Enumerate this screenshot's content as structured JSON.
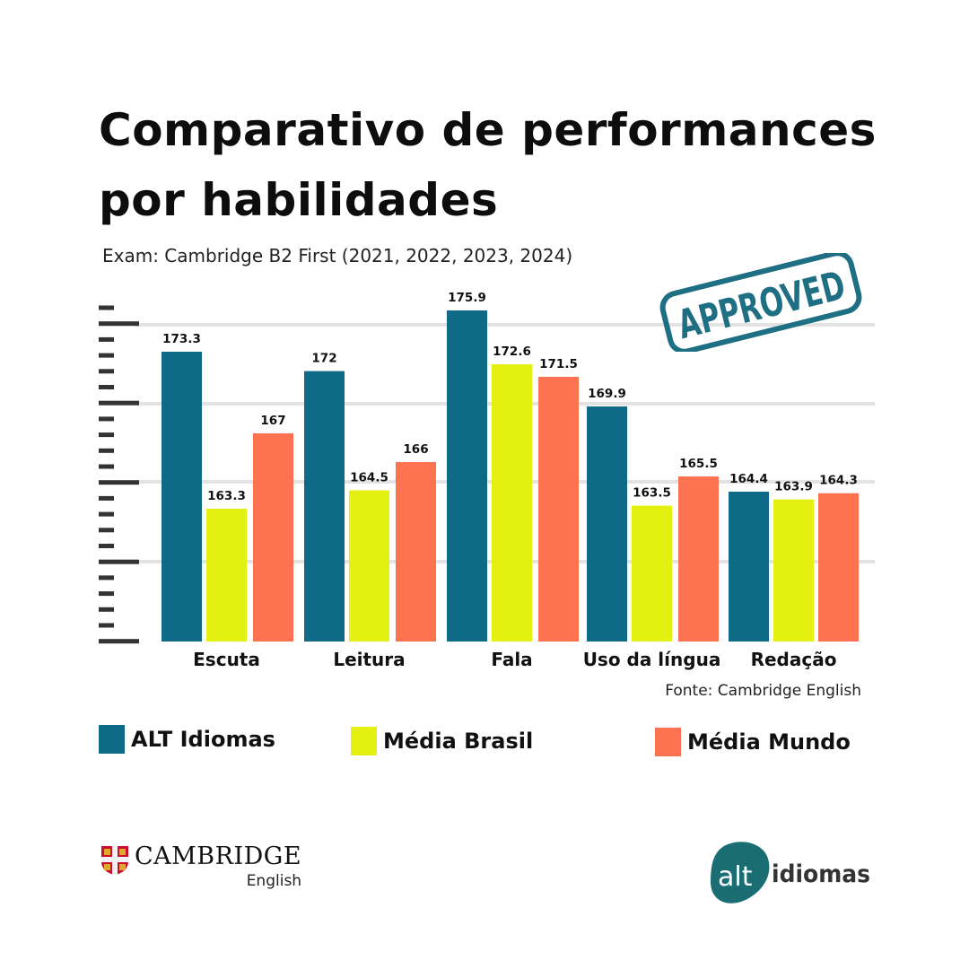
{
  "header": {
    "title_line1": "Comparativo de performances",
    "title_line2": "por habilidades",
    "subtitle": "Exam: Cambridge B2 First (2021, 2022, 2023, 2024)"
  },
  "stamp": {
    "text": "APPROVED",
    "color": "#1e6f83"
  },
  "chart_data": {
    "type": "bar",
    "title": "Comparativo de performances por habilidades",
    "subtitle": "Exam: Cambridge B2 First (2021, 2022, 2023, 2024)",
    "xlabel": "",
    "ylabel": "",
    "categories": [
      "Escuta",
      "Leitura",
      "Fala",
      "Uso da língua",
      "Redação"
    ],
    "series": [
      {
        "name": "ALT Idiomas",
        "color": "#0f6a87",
        "values": [
          173.3,
          172,
          175.9,
          169.9,
          164.4
        ],
        "labels": [
          "173.3",
          "172",
          "175.9",
          "169.9",
          "164.4"
        ]
      },
      {
        "name": "Média Brasil",
        "color": "#e4f010",
        "values": [
          163.3,
          164.5,
          172.6,
          163.5,
          163.9
        ],
        "labels": [
          "163.3",
          "164.5",
          "172.6",
          "163.5",
          "163.9"
        ]
      },
      {
        "name": "Média Mundo",
        "color": "#fd7250",
        "values": [
          167,
          166,
          171.5,
          165.5,
          164.3
        ],
        "labels": [
          "167",
          "166",
          "171.5",
          "165.5",
          "164.3"
        ]
      }
    ],
    "grid": true,
    "legend_position": "bottom",
    "data_labels": true,
    "y_tick_labels": "none",
    "source": "Fonte: Cambridge English"
  },
  "legend": [
    {
      "label": "ALT Idiomas",
      "color": "#0f6a87"
    },
    {
      "label": "Média Brasil",
      "color": "#e4f010"
    },
    {
      "label": "Média Mundo",
      "color": "#fd7250"
    }
  ],
  "footer": {
    "source": "Fonte: Cambridge English",
    "cambridge_logo": {
      "name": "CAMBRIDGE",
      "sub": "English"
    },
    "alt_logo": {
      "part1": "alt",
      "part2": "idiomas",
      "color": "#1a6e73"
    }
  }
}
